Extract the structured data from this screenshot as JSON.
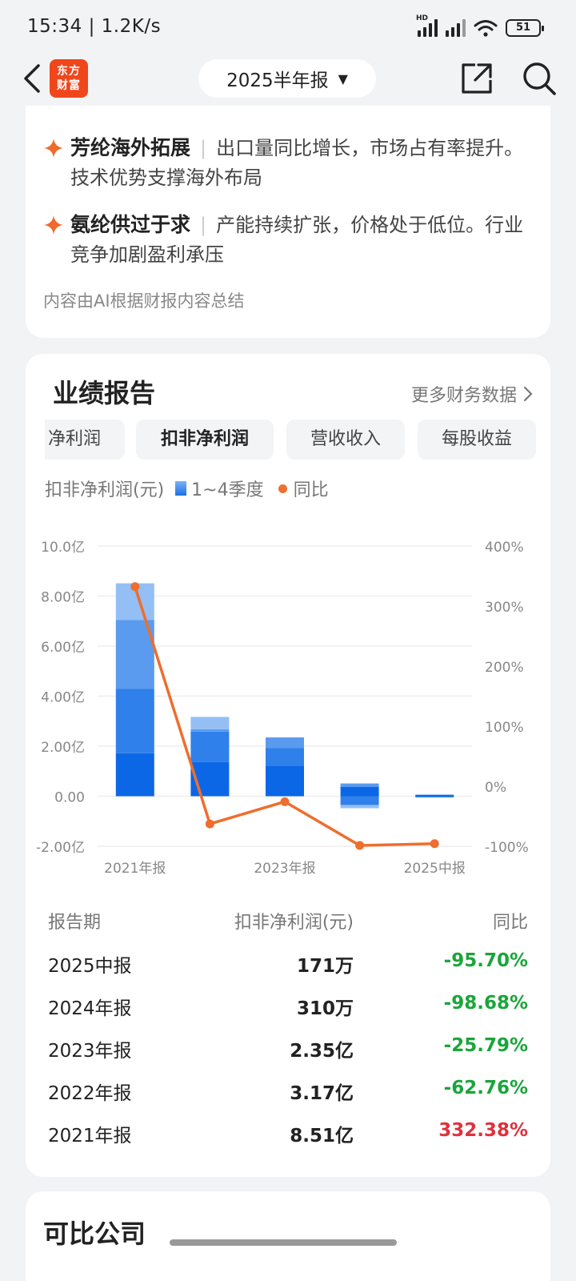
{
  "status": {
    "time": "15:34 | 1.2K/s",
    "battery": "51",
    "hd": "HD"
  },
  "nav": {
    "logo_line1": "东方",
    "logo_line2": "财富",
    "period": "2025半年报",
    "caret": "▼"
  },
  "ai": {
    "items": [
      {
        "title": "芳纶海外拓展",
        "text": "出口量同比增长，市场占有率提升。技术优势支撑海外布局"
      },
      {
        "title": "氨纶供过于求",
        "text": "产能持续扩张，价格处于低位。行业竞争加剧盈利承压"
      }
    ],
    "separator": "|",
    "note": "内容由AI根据财报内容总结"
  },
  "performance": {
    "title": "业绩报告",
    "more": "更多财务数据",
    "tabs": [
      {
        "label": "净利润"
      },
      {
        "label": "扣非净利润",
        "active": true
      },
      {
        "label": "营收收入"
      },
      {
        "label": "每股收益"
      }
    ],
    "legend": {
      "label": "扣非净利润(元)",
      "bars": "1~4季度",
      "line": "同比"
    }
  },
  "chart_data": {
    "type": "bar",
    "stacked": true,
    "periods": [
      "2021年报",
      "2022年报",
      "2023年报",
      "2024年报",
      "2025中报"
    ],
    "x_tick_labels": [
      "2021年报",
      "2023年报",
      "2025中报"
    ],
    "left_axis": {
      "ticks": [
        "10.0亿",
        "8.00亿",
        "6.00亿",
        "4.00亿",
        "2.00亿",
        "0.00",
        "-2.00亿"
      ],
      "range": [
        -2,
        10
      ],
      "unit": "亿"
    },
    "right_axis": {
      "ticks": [
        "400%",
        "300%",
        "200%",
        "100%",
        "0%",
        "-100%"
      ],
      "range": [
        -100,
        400
      ]
    },
    "series": [
      {
        "name": "Q1",
        "values": [
          1.72,
          1.37,
          1.22,
          0.38,
          0.06
        ]
      },
      {
        "name": "Q2",
        "values": [
          2.58,
          1.21,
          0.7,
          -0.35,
          -0.04
        ]
      },
      {
        "name": "Q3",
        "values": [
          2.75,
          0.1,
          0.43,
          0.13
        ]
      },
      {
        "name": "Q4",
        "values": [
          1.46,
          0.49,
          0.0,
          -0.13
        ]
      }
    ],
    "yoy": [
      332.38,
      -62.76,
      -25.79,
      -98.68,
      -95.7
    ],
    "colors": [
      "#0b67e6",
      "#2f80ea",
      "#5b9bef",
      "#93bff5"
    ],
    "line_color": "#ee6e2e",
    "grid": true
  },
  "table": {
    "headers": [
      "报告期",
      "扣非净利润(元)",
      "同比"
    ],
    "rows": [
      {
        "period": "2025中报",
        "value": "171万",
        "yoy": "-95.70%",
        "sign": "neg"
      },
      {
        "period": "2024年报",
        "value": "310万",
        "yoy": "-98.68%",
        "sign": "neg"
      },
      {
        "period": "2023年报",
        "value": "2.35亿",
        "yoy": "-25.79%",
        "sign": "neg"
      },
      {
        "period": "2022年报",
        "value": "3.17亿",
        "yoy": "-62.76%",
        "sign": "neg"
      },
      {
        "period": "2021年报",
        "value": "8.51亿",
        "yoy": "332.38%",
        "sign": "pos"
      }
    ]
  },
  "comparable": {
    "title": "可比公司"
  }
}
